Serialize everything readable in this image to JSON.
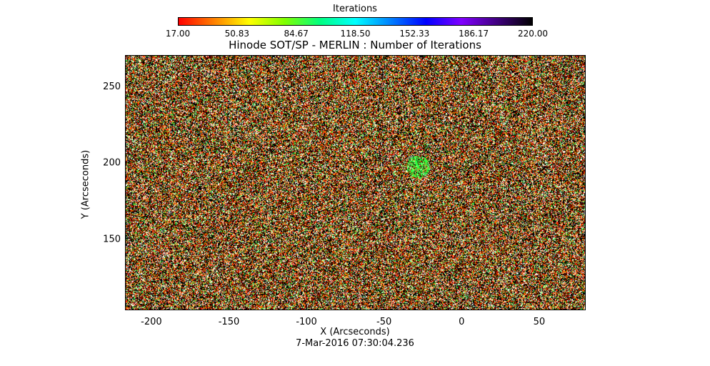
{
  "colorbar": {
    "title": "Iterations",
    "tick_labels": [
      "17.00",
      "50.83",
      "84.67",
      "118.50",
      "152.33",
      "186.17",
      "220.00"
    ],
    "min": 17,
    "max": 220,
    "colors": [
      "#ff0000",
      "#ff8000",
      "#ffff00",
      "#80ff00",
      "#00ff80",
      "#00ffff",
      "#0080ff",
      "#0000ff",
      "#8000ff",
      "#400080",
      "#000000"
    ]
  },
  "chart_data": {
    "type": "heatmap",
    "title": "Hinode SOT/SP - MERLIN : Number of Iterations",
    "xlabel": "X (Arcseconds)",
    "ylabel": "Y (Arcseconds)",
    "xlim": [
      -217,
      80
    ],
    "ylim": [
      103,
      270
    ],
    "x_ticks": [
      -200,
      -150,
      -100,
      -50,
      0,
      50
    ],
    "y_ticks": [
      150,
      200,
      250
    ],
    "x_tick_labels": [
      "-200",
      "-150",
      "-100",
      "-50",
      "0",
      "50"
    ],
    "y_tick_labels": [
      "150",
      "200",
      "250"
    ],
    "value_range": [
      17,
      220
    ],
    "dominant_colors": [
      "#000000",
      "#ffffff",
      "#ff2000",
      "#ff9000",
      "#30ff40",
      "#c0ffa0"
    ],
    "notable_features": [
      {
        "x": -28,
        "y": 197,
        "value": 100
      }
    ]
  },
  "footer": {
    "timestamp": "7-Mar-2016 07:30:04.236"
  }
}
